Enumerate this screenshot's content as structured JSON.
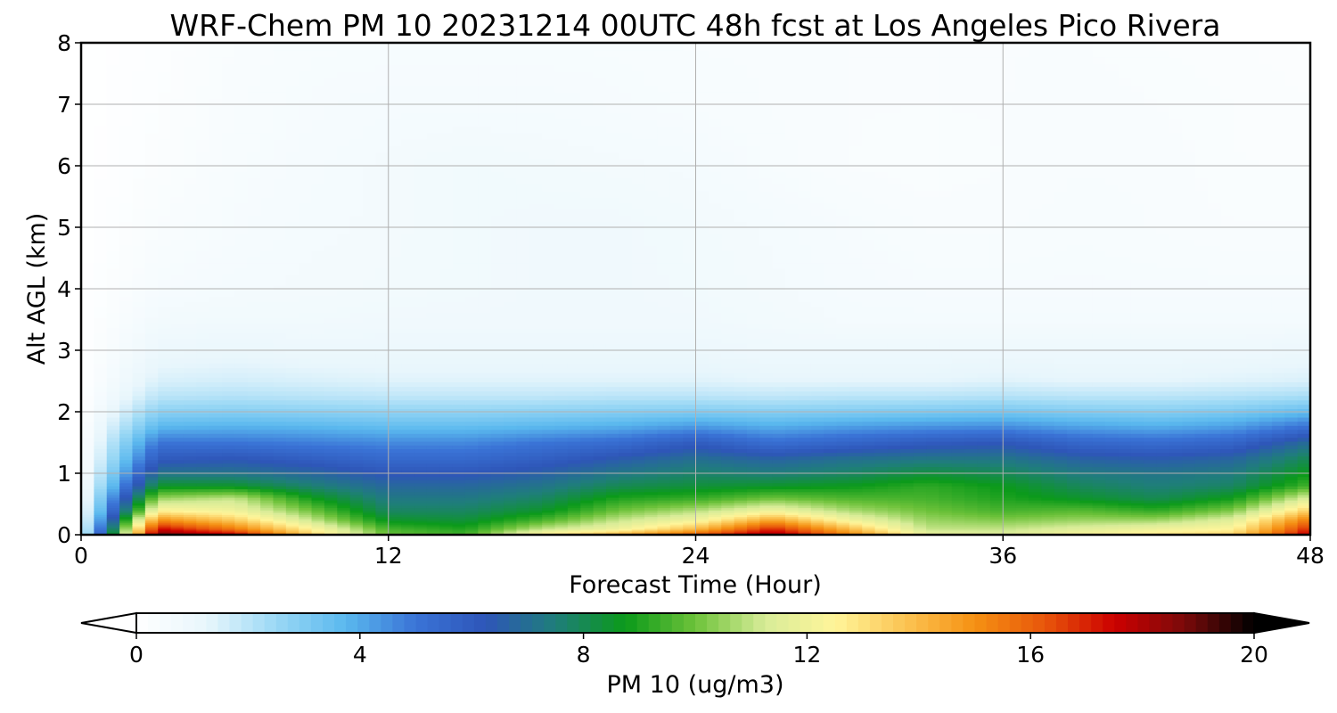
{
  "chart_data": {
    "type": "heatmap",
    "title": "WRF-Chem PM 10  20231214 00UTC 48h fcst at Los Angeles Pico Rivera",
    "xlabel": "Forecast Time (Hour)",
    "ylabel": "Alt AGL (km)",
    "xlim": [
      0,
      48
    ],
    "ylim": [
      0,
      8
    ],
    "x_ticks": [
      "0",
      "12",
      "24",
      "36",
      "48"
    ],
    "y_ticks": [
      "0",
      "1",
      "2",
      "3",
      "4",
      "5",
      "6",
      "7",
      "8"
    ],
    "grid": true,
    "colorbar": {
      "label": "PM 10  (ug/m3)",
      "range": [
        0,
        20
      ],
      "ticks": [
        "0",
        "4",
        "8",
        "12",
        "16",
        "20"
      ],
      "extend": "both",
      "colors": [
        "#ffffff",
        "#e8f6fc",
        "#9ad8f5",
        "#5ab8ee",
        "#3a73d6",
        "#2e56b8",
        "#1f7e7a",
        "#0b9a1a",
        "#6dc23a",
        "#d8ec98",
        "#fff59a",
        "#fbc453",
        "#f59113",
        "#e8560b",
        "#cc0000",
        "#7a0a0a",
        "#000000"
      ]
    },
    "times": [
      0,
      3,
      6,
      9,
      12,
      15,
      18,
      21,
      24,
      27,
      30,
      33,
      36,
      39,
      42,
      45,
      48
    ],
    "altitudes_km": [
      0,
      0.1,
      0.25,
      0.4,
      0.6,
      0.8,
      1.0,
      1.25,
      1.5,
      1.75,
      2.0,
      2.25,
      2.5,
      3.0,
      3.5,
      4.0,
      5.0,
      6.0,
      7.0,
      8.0
    ],
    "values": [
      [
        1.0,
        19.0,
        18.0,
        13.5,
        10.0,
        9.5,
        13.0,
        14.5,
        16.5,
        18.5,
        15.5,
        12.0,
        11.5,
        12.5,
        13.0,
        13.5,
        18.0
      ],
      [
        0.8,
        17.5,
        15.5,
        12.5,
        9.5,
        9.0,
        11.0,
        12.0,
        14.0,
        17.0,
        14.0,
        11.0,
        11.0,
        11.5,
        12.0,
        12.5,
        17.0
      ],
      [
        0.6,
        15.0,
        13.5,
        11.0,
        8.5,
        8.3,
        9.5,
        11.0,
        12.0,
        14.5,
        12.0,
        10.5,
        10.2,
        10.5,
        10.5,
        11.5,
        15.5
      ],
      [
        0.5,
        12.5,
        12.0,
        10.0,
        7.8,
        7.8,
        8.5,
        10.0,
        10.8,
        12.0,
        10.7,
        10.0,
        9.5,
        9.7,
        9.2,
        10.2,
        13.5
      ],
      [
        0.4,
        10.5,
        11.0,
        8.8,
        7.3,
        7.3,
        7.8,
        9.0,
        9.3,
        10.0,
        9.6,
        9.5,
        9.0,
        8.5,
        8.0,
        8.8,
        11.5
      ],
      [
        0.3,
        8.5,
        8.5,
        7.6,
        6.8,
        6.8,
        7.2,
        8.0,
        8.3,
        8.5,
        8.7,
        9.2,
        8.7,
        7.9,
        7.5,
        7.8,
        9.5
      ],
      [
        0.2,
        7.2,
        7.2,
        6.8,
        6.2,
        6.2,
        6.6,
        7.3,
        7.7,
        7.5,
        7.8,
        8.3,
        8.0,
        7.4,
        7.2,
        7.4,
        8.8
      ],
      [
        0.1,
        6.0,
        6.2,
        5.8,
        5.4,
        5.4,
        5.8,
        6.4,
        7.0,
        6.6,
        7.0,
        7.2,
        7.2,
        6.6,
        6.4,
        6.7,
        8.0
      ],
      [
        0.1,
        5.0,
        5.0,
        4.8,
        4.6,
        4.6,
        5.0,
        5.3,
        6.0,
        5.2,
        5.6,
        6.0,
        6.2,
        5.5,
        5.3,
        5.6,
        7.0
      ],
      [
        0.1,
        3.8,
        3.9,
        3.8,
        3.6,
        3.6,
        3.8,
        4.0,
        4.4,
        4.0,
        4.3,
        4.5,
        4.6,
        4.2,
        4.0,
        4.3,
        5.2
      ],
      [
        0.05,
        2.8,
        2.9,
        2.8,
        2.7,
        2.7,
        2.8,
        2.9,
        3.0,
        2.9,
        3.0,
        3.1,
        3.2,
        3.0,
        2.9,
        3.1,
        3.6
      ],
      [
        0.05,
        2.0,
        2.1,
        2.0,
        1.9,
        1.9,
        1.9,
        2.0,
        2.0,
        1.9,
        2.0,
        2.0,
        2.1,
        2.0,
        2.0,
        2.1,
        2.3
      ],
      [
        0.05,
        1.5,
        1.6,
        1.5,
        1.4,
        1.4,
        1.4,
        1.4,
        1.4,
        1.3,
        1.3,
        1.3,
        1.4,
        1.3,
        1.3,
        1.4,
        1.5
      ],
      [
        0.05,
        1.0,
        1.1,
        1.0,
        1.0,
        1.0,
        1.0,
        1.0,
        1.0,
        0.9,
        0.9,
        0.9,
        0.9,
        0.9,
        0.9,
        0.9,
        1.0
      ],
      [
        0.05,
        0.7,
        0.75,
        0.75,
        0.8,
        0.8,
        0.8,
        0.8,
        0.8,
        0.7,
        0.6,
        0.6,
        0.6,
        0.6,
        0.6,
        0.6,
        0.6
      ],
      [
        0.05,
        0.5,
        0.6,
        0.65,
        0.7,
        0.75,
        0.8,
        0.8,
        0.75,
        0.65,
        0.55,
        0.5,
        0.5,
        0.5,
        0.5,
        0.5,
        0.5
      ],
      [
        0.02,
        0.35,
        0.5,
        0.6,
        0.65,
        0.75,
        0.8,
        0.8,
        0.7,
        0.6,
        0.5,
        0.4,
        0.4,
        0.45,
        0.4,
        0.35,
        0.35
      ],
      [
        0.02,
        0.25,
        0.45,
        0.55,
        0.65,
        0.75,
        0.7,
        0.65,
        0.6,
        0.45,
        0.35,
        0.3,
        0.35,
        0.4,
        0.4,
        0.3,
        0.3
      ],
      [
        0.02,
        0.2,
        0.4,
        0.5,
        0.55,
        0.55,
        0.55,
        0.5,
        0.45,
        0.4,
        0.35,
        0.35,
        0.35,
        0.4,
        0.35,
        0.3,
        0.25
      ],
      [
        0.02,
        0.15,
        0.35,
        0.45,
        0.45,
        0.45,
        0.45,
        0.45,
        0.4,
        0.4,
        0.35,
        0.35,
        0.35,
        0.35,
        0.3,
        0.25,
        0.2
      ]
    ]
  }
}
